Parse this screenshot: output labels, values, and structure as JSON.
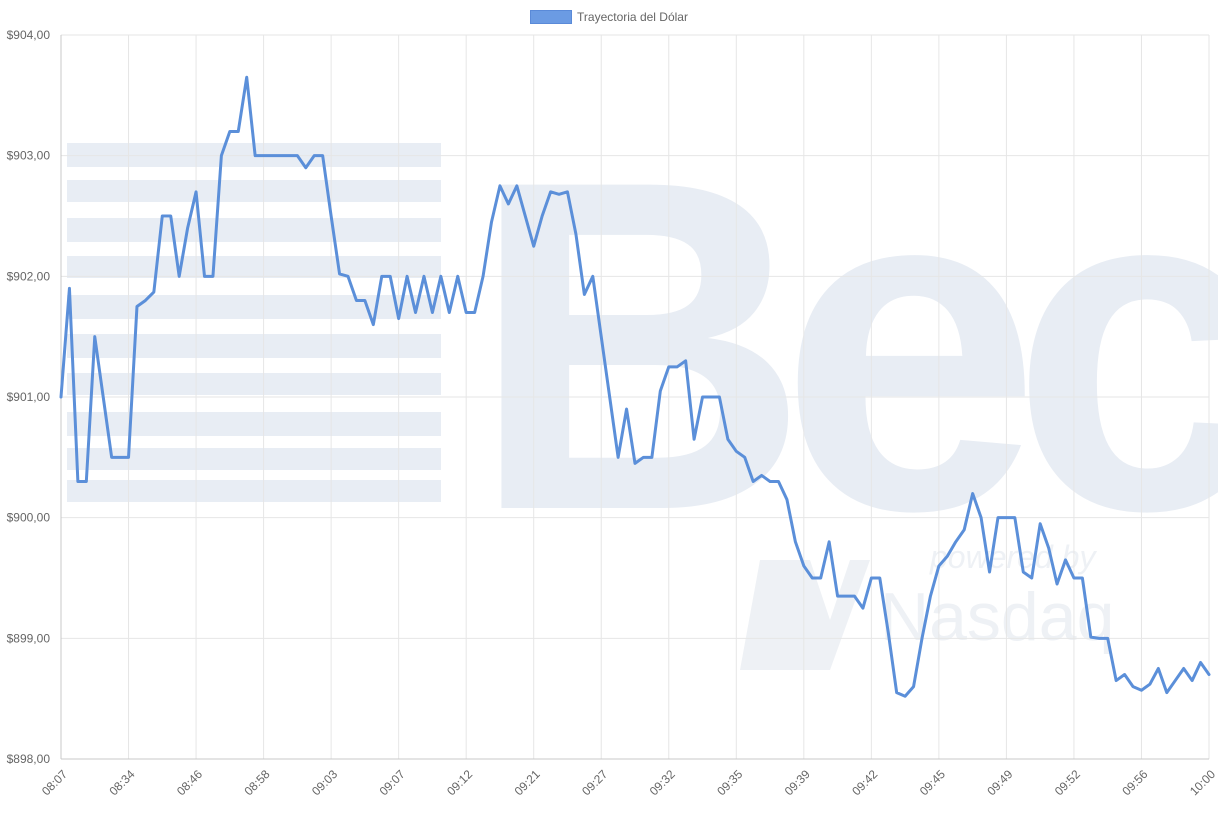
{
  "chart_data": {
    "type": "line",
    "legend": {
      "label": "Trayectoria del Dólar",
      "position": "top"
    },
    "colors": {
      "line": "#5b8fd9",
      "legend_fill": "#6b9be3",
      "grid": "#e6e6e6",
      "axis_text": "#666666",
      "watermark": "#e8edf4"
    },
    "watermark": {
      "logo_text": "Bec",
      "powered_text": "powered by",
      "nasdaq_text": "Nasdaq"
    },
    "grid": true,
    "y_axis": {
      "min": 898,
      "max": 904,
      "step": 1,
      "tick_labels": [
        "$898,00",
        "$899,00",
        "$900,00",
        "$901,00",
        "$902,00",
        "$903,00",
        "$904,00"
      ]
    },
    "x_axis": {
      "tick_labels": [
        "08:07",
        "08:34",
        "08:46",
        "08:58",
        "09:03",
        "09:07",
        "09:12",
        "09:21",
        "09:27",
        "09:32",
        "09:35",
        "09:39",
        "09:42",
        "09:45",
        "09:49",
        "09:52",
        "09:56",
        "10:00"
      ],
      "points_per_tick": 8
    },
    "values": [
      901.0,
      901.9,
      900.3,
      900.3,
      901.5,
      901.0,
      900.5,
      900.5,
      900.5,
      901.75,
      901.8,
      901.87,
      902.5,
      902.5,
      902.0,
      902.4,
      902.7,
      902.0,
      902.0,
      903.0,
      903.2,
      903.2,
      903.65,
      903.0,
      903.0,
      903.0,
      903.0,
      903.0,
      903.0,
      902.9,
      903.0,
      903.0,
      902.5,
      902.02,
      902.0,
      901.8,
      901.8,
      901.6,
      902.0,
      902.0,
      901.65,
      902.0,
      901.7,
      902.0,
      901.7,
      902.0,
      901.7,
      902.0,
      901.7,
      901.7,
      902.0,
      902.45,
      902.75,
      902.6,
      902.75,
      902.5,
      902.25,
      902.5,
      902.7,
      902.68,
      902.7,
      902.35,
      901.85,
      902.0,
      901.5,
      901.0,
      900.5,
      900.9,
      900.45,
      900.5,
      900.5,
      901.05,
      901.25,
      901.25,
      901.3,
      900.65,
      901.0,
      901.0,
      901.0,
      900.65,
      900.55,
      900.5,
      900.3,
      900.35,
      900.3,
      900.3,
      900.15,
      899.8,
      899.6,
      899.5,
      899.5,
      899.8,
      899.35,
      899.35,
      899.35,
      899.25,
      899.5,
      899.5,
      899.05,
      898.55,
      898.52,
      898.6,
      899.0,
      899.35,
      899.6,
      899.68,
      899.8,
      899.9,
      900.2,
      900.0,
      899.55,
      900.0,
      900.0,
      900.0,
      899.55,
      899.5,
      899.95,
      899.75,
      899.45,
      899.65,
      899.5,
      899.5,
      899.01,
      899.0,
      899.0,
      898.65,
      898.7,
      898.6,
      898.57,
      898.62,
      898.75,
      898.55,
      898.65,
      898.75,
      898.65,
      898.8,
      898.7
    ]
  }
}
